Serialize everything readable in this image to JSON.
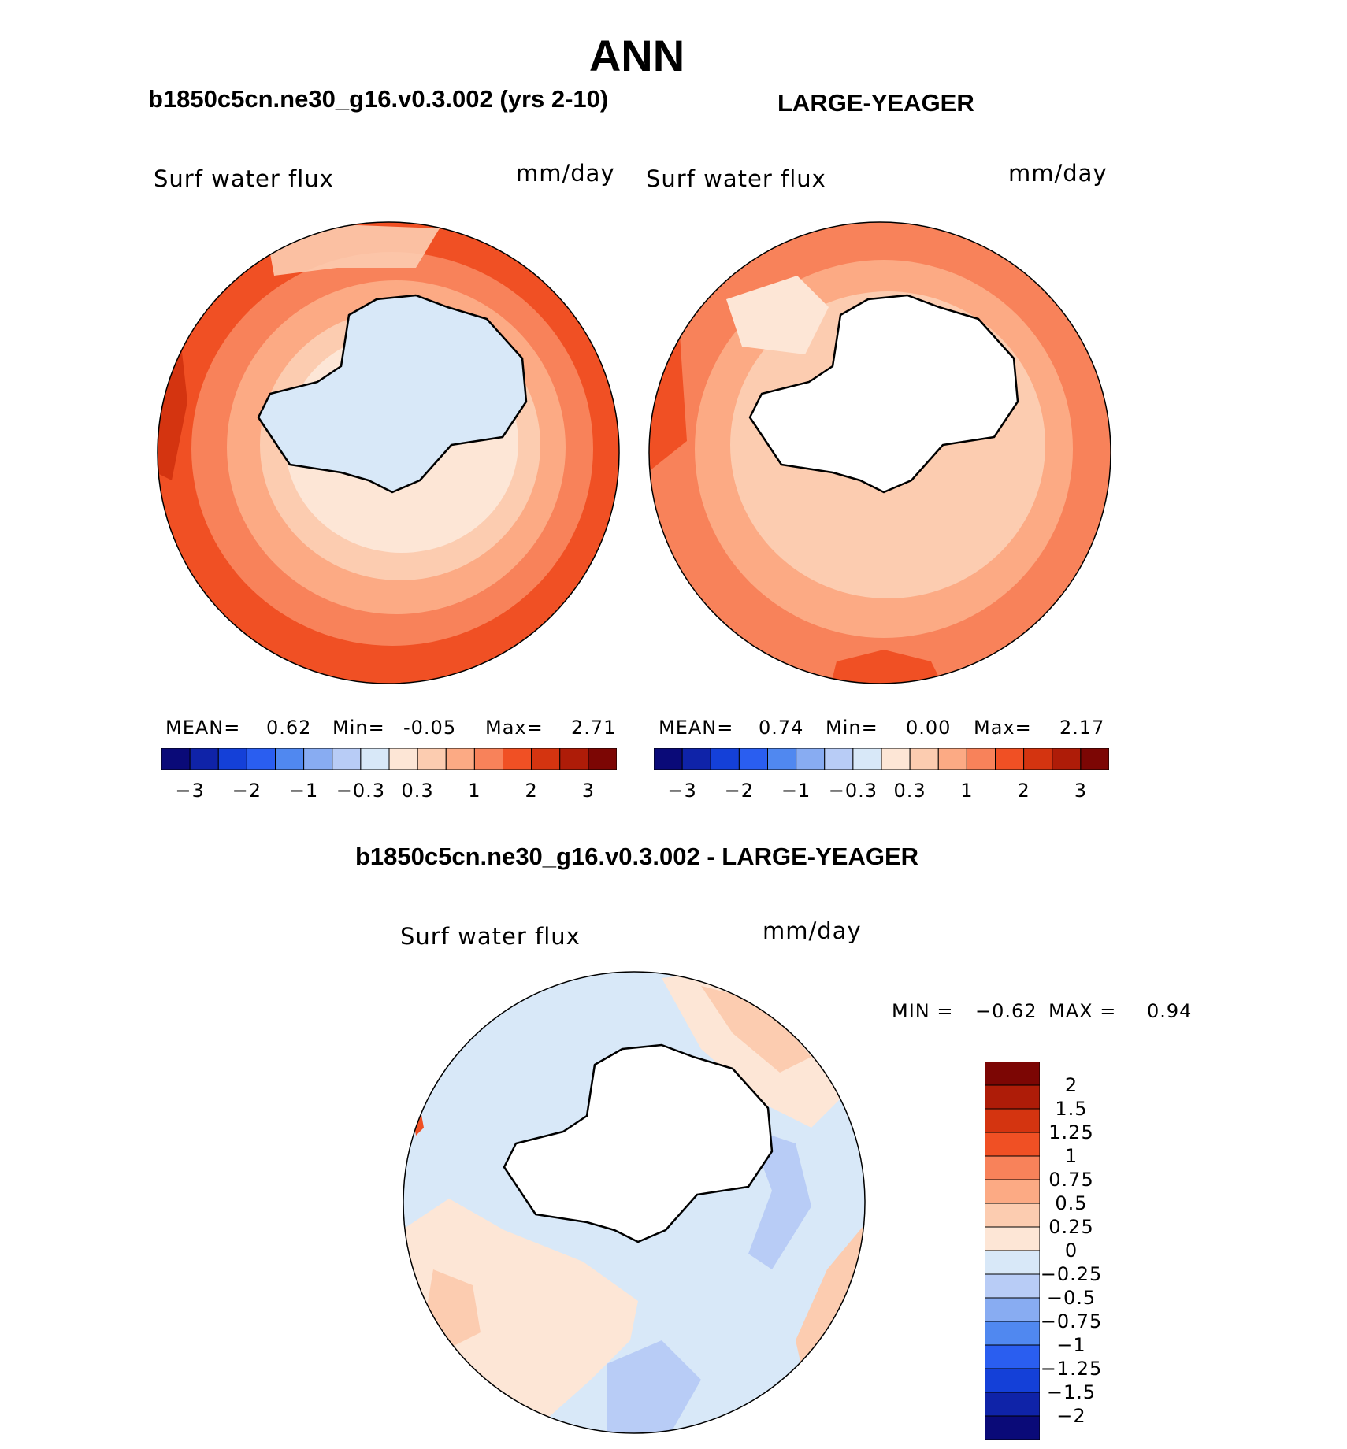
{
  "title": "ANN",
  "panel_headers": {
    "left": "b1850c5cn.ne30_g16.v0.3.002 (yrs 2-10)",
    "right": "LARGE-YEAGER",
    "diff": "b1850c5cn.ne30_g16.v0.3.002 - LARGE-YEAGER"
  },
  "colors": {
    "land": "#ffffff",
    "coast": "#000000",
    "abs_scale": [
      "#0a0a78",
      "#0f23a8",
      "#1440d8",
      "#2a5ef0",
      "#5088f0",
      "#88acf2",
      "#b8ccf6",
      "#d8e8f8",
      "#fde6d6",
      "#fcccb0",
      "#fcaa84",
      "#f8825a",
      "#f05024",
      "#d43410",
      "#ae1c08",
      "#7c0604"
    ],
    "diff_scale": [
      "#7c0604",
      "#ae1c08",
      "#d43410",
      "#f05024",
      "#f8825a",
      "#fcaa84",
      "#fcccb0",
      "#fde6d6",
      "#d8e8f8",
      "#b8ccf6",
      "#88acf2",
      "#5088f0",
      "#2a5ef0",
      "#1440d8",
      "#0f23a8",
      "#0a0a78"
    ]
  },
  "chart_data": [
    {
      "type": "heatmap",
      "projection": "south-polar-stereographic",
      "panel": "model",
      "variable": "Surf water flux",
      "units": "mm/day",
      "stats": {
        "mean_label": "MEAN=",
        "mean": "0.62",
        "min_label": "Min=",
        "min": "-0.05",
        "max_label": "Max=",
        "max": "2.71"
      },
      "contour_levels": [
        -3,
        -2.5,
        -2,
        -1.5,
        -1,
        -0.5,
        -0.3,
        0,
        0.3,
        0.5,
        1,
        1.5,
        2,
        2.5,
        3
      ],
      "colorbar_tick_labels": [
        "−3",
        "−2",
        "−1",
        "−0.3",
        "0.3",
        "1",
        "2",
        "3"
      ],
      "colorbar_orientation": "horizontal"
    },
    {
      "type": "heatmap",
      "projection": "south-polar-stereographic",
      "panel": "observations",
      "variable": "Surf water flux",
      "units": "mm/day",
      "stats": {
        "mean_label": "MEAN=",
        "mean": "0.74",
        "min_label": "Min=",
        "min": "0.00",
        "max_label": "Max=",
        "max": "2.17"
      },
      "contour_levels": [
        -3,
        -2.5,
        -2,
        -1.5,
        -1,
        -0.5,
        -0.3,
        0,
        0.3,
        0.5,
        1,
        1.5,
        2,
        2.5,
        3
      ],
      "colorbar_tick_labels": [
        "−3",
        "−2",
        "−1",
        "−0.3",
        "0.3",
        "1",
        "2",
        "3"
      ],
      "colorbar_orientation": "horizontal"
    },
    {
      "type": "heatmap",
      "projection": "south-polar-stereographic",
      "panel": "difference",
      "variable": "Surf water flux",
      "units": "mm/day",
      "stats": {
        "min_label": "MIN =",
        "min": "−0.62",
        "max_label": "MAX =",
        "max": "0.94"
      },
      "contour_levels": [
        -2,
        -1.5,
        -1.25,
        -1,
        -0.75,
        -0.5,
        -0.25,
        0,
        0.25,
        0.5,
        0.75,
        1,
        1.25,
        1.5,
        2
      ],
      "colorbar_tick_labels": [
        "2",
        "1.5",
        "1.25",
        "1",
        "0.75",
        "0.5",
        "0.25",
        "0",
        "−0.25",
        "−0.5",
        "−0.75",
        "−1",
        "−1.25",
        "−1.5",
        "−2"
      ],
      "colorbar_orientation": "vertical"
    }
  ]
}
